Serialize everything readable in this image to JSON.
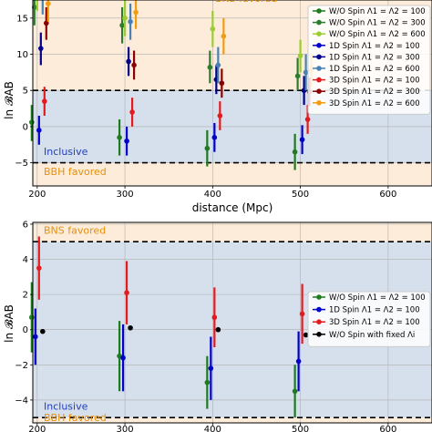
{
  "chart_data": [
    {
      "type": "scatter",
      "xlabel": "distance (Mpc)",
      "ylabel": "ln 𝓑AB",
      "xticks": [
        "200",
        "300",
        "400",
        "500",
        "600"
      ],
      "yticks": [
        "−5",
        "0",
        "5",
        "10",
        "15"
      ],
      "xlim": [
        195,
        650
      ],
      "ylim": [
        -8.2,
        17.5
      ],
      "grid": true,
      "thresholds": [
        5,
        -5
      ],
      "zones": {
        "top_label": "BNS favored",
        "inclusive_label": "Inclusive",
        "bottom_label": "BBH favored",
        "top_color": "#fcecd9",
        "mid_color": "#d6dfec"
      },
      "legend_position": "right, upper",
      "series": [
        {
          "name": "W/O Spin Λ1 = Λ2 = 100",
          "color": "#1e7b1e",
          "dx": -6,
          "points": [
            {
              "x": 200,
              "y": 0.6,
              "lo": -2,
              "hi": 3
            },
            {
              "x": 300,
              "y": -1.5,
              "lo": -4,
              "hi": 1
            },
            {
              "x": 400,
              "y": -3,
              "lo": -5.5,
              "hi": -0.5
            },
            {
              "x": 500,
              "y": -3.5,
              "lo": -6,
              "hi": -1
            }
          ]
        },
        {
          "name": "W/O Spin Λ1 = Λ2 = 300",
          "color": "#2e7d2e",
          "dx": -3,
          "points": [
            {
              "x": 200,
              "y": 16.5,
              "lo": 14,
              "hi": 19
            },
            {
              "x": 300,
              "y": 14,
              "lo": 11.5,
              "hi": 16.5
            },
            {
              "x": 400,
              "y": 8.2,
              "lo": 6,
              "hi": 10.5
            },
            {
              "x": 500,
              "y": 7,
              "lo": 5,
              "hi": 9.5
            }
          ]
        },
        {
          "name": "W/O Spin Λ1 = Λ2 = 600",
          "color": "#9acd32",
          "dx": 0,
          "points": [
            {
              "x": 200,
              "y": 19,
              "lo": 16,
              "hi": 22
            },
            {
              "x": 300,
              "y": 15,
              "lo": 12.5,
              "hi": 17.5
            },
            {
              "x": 400,
              "y": 13.5,
              "lo": 11,
              "hi": 16
            },
            {
              "x": 500,
              "y": 9.8,
              "lo": 7.5,
              "hi": 12
            }
          ]
        },
        {
          "name": "1D Spin Λ1 = Λ2 = 100",
          "color": "#0000cd",
          "dx": 2,
          "points": [
            {
              "x": 200,
              "y": -0.5,
              "lo": -2.5,
              "hi": 1.5
            },
            {
              "x": 300,
              "y": -2,
              "lo": -4,
              "hi": 0
            },
            {
              "x": 400,
              "y": -1.5,
              "lo": -3.5,
              "hi": 0.5
            },
            {
              "x": 500,
              "y": -1.8,
              "lo": -3.8,
              "hi": 0.2
            }
          ]
        },
        {
          "name": "1D Spin Λ1 = Λ2 = 300",
          "color": "#00008b",
          "dx": 4,
          "points": [
            {
              "x": 200,
              "y": 10.8,
              "lo": 8.5,
              "hi": 13
            },
            {
              "x": 300,
              "y": 9,
              "lo": 7,
              "hi": 11
            },
            {
              "x": 400,
              "y": 6.5,
              "lo": 4.5,
              "hi": 8.5
            },
            {
              "x": 500,
              "y": 5,
              "lo": 3,
              "hi": 7
            }
          ]
        },
        {
          "name": "1D Spin Λ1 = Λ2 = 600",
          "color": "#4682b4",
          "dx": 6,
          "points": [
            {
              "x": 200,
              "y": 18,
              "lo": 15.5,
              "hi": 20.5
            },
            {
              "x": 300,
              "y": 14.5,
              "lo": 12,
              "hi": 17
            },
            {
              "x": 400,
              "y": 8.5,
              "lo": 6,
              "hi": 11
            },
            {
              "x": 500,
              "y": 7.5,
              "lo": 5,
              "hi": 10
            }
          ]
        },
        {
          "name": "3D Spin Λ1 = Λ2 = 100",
          "color": "#e41a1c",
          "dx": 8,
          "points": [
            {
              "x": 200,
              "y": 3.5,
              "lo": 1.5,
              "hi": 5.5
            },
            {
              "x": 300,
              "y": 2,
              "lo": 0,
              "hi": 4
            },
            {
              "x": 400,
              "y": 1.5,
              "lo": -0.5,
              "hi": 3.5
            },
            {
              "x": 500,
              "y": 1,
              "lo": -1,
              "hi": 3
            }
          ]
        },
        {
          "name": "3D Spin Λ1 = Λ2 = 300",
          "color": "#8b0000",
          "dx": 10,
          "points": [
            {
              "x": 200,
              "y": 14.3,
              "lo": 12,
              "hi": 16.5
            },
            {
              "x": 300,
              "y": 8.5,
              "lo": 6.5,
              "hi": 10.5
            },
            {
              "x": 400,
              "y": 6,
              "lo": 4,
              "hi": 8
            },
            {
              "x": 500,
              "y": 4.8,
              "lo": 2.8,
              "hi": 6.8
            }
          ]
        },
        {
          "name": "3D Spin Λ1 = Λ2 = 600",
          "color": "#f39c12",
          "dx": 12,
          "points": [
            {
              "x": 200,
              "y": 17,
              "lo": 14.5,
              "hi": 19.5
            },
            {
              "x": 300,
              "y": 15.8,
              "lo": 13.5,
              "hi": 18
            },
            {
              "x": 400,
              "y": 12.5,
              "lo": 10,
              "hi": 15
            },
            {
              "x": 500,
              "y": 7.8,
              "lo": 5.5,
              "hi": 10
            }
          ]
        }
      ]
    },
    {
      "type": "scatter",
      "xlabel": "",
      "ylabel": "ln 𝓑AB",
      "xticks": [
        "200",
        "300",
        "400",
        "500",
        "600"
      ],
      "yticks": [
        "−4",
        "−2",
        "0",
        "2",
        "4",
        "6"
      ],
      "xlim": [
        195,
        650
      ],
      "ylim": [
        -5.3,
        6.1
      ],
      "grid": true,
      "thresholds": [
        5,
        -5
      ],
      "zones": {
        "top_label": "BNS favored",
        "inclusive_label": "Inclusive",
        "bottom_label": "BBH favored",
        "top_color": "#fcecd9",
        "mid_color": "#d6dfec"
      },
      "legend_position": "right, lower",
      "series": [
        {
          "name": "W/O Spin Λ1 = Λ2 = 100",
          "color": "#1e7b1e",
          "dx": -6,
          "points": [
            {
              "x": 200,
              "y": 0.7,
              "lo": -1.3,
              "hi": 2.7
            },
            {
              "x": 300,
              "y": -1.5,
              "lo": -3.5,
              "hi": 0.5
            },
            {
              "x": 400,
              "y": -3,
              "lo": -4.5,
              "hi": -1.5
            },
            {
              "x": 500,
              "y": -3.5,
              "lo": -5,
              "hi": -2
            }
          ]
        },
        {
          "name": "1D Spin Λ1 = Λ2 = 100",
          "color": "#0000cd",
          "dx": -2,
          "points": [
            {
              "x": 200,
              "y": -0.4,
              "lo": -2,
              "hi": 1.2
            },
            {
              "x": 300,
              "y": -1.6,
              "lo": -3.5,
              "hi": 0.3
            },
            {
              "x": 400,
              "y": -2.2,
              "lo": -4,
              "hi": -0.4
            },
            {
              "x": 500,
              "y": -1.8,
              "lo": -3.5,
              "hi": -0.1
            }
          ]
        },
        {
          "name": "3D Spin Λ1 = Λ2 = 100",
          "color": "#e41a1c",
          "dx": 2,
          "points": [
            {
              "x": 200,
              "y": 3.5,
              "lo": 1.7,
              "hi": 5.3
            },
            {
              "x": 300,
              "y": 2.1,
              "lo": 0.3,
              "hi": 3.9
            },
            {
              "x": 400,
              "y": 0.7,
              "lo": -1,
              "hi": 2.4
            },
            {
              "x": 500,
              "y": 0.9,
              "lo": -0.8,
              "hi": 2.6
            }
          ]
        },
        {
          "name": "W/O Spin with fixed Λi",
          "color": "#000000",
          "dx": 6,
          "points": [
            {
              "x": 200,
              "y": -0.1,
              "lo": -0.1,
              "hi": -0.1
            },
            {
              "x": 300,
              "y": 0.1,
              "lo": 0.1,
              "hi": 0.1
            },
            {
              "x": 400,
              "y": 0,
              "lo": 0,
              "hi": 0
            },
            {
              "x": 500,
              "y": -0.3,
              "lo": -0.3,
              "hi": -0.3
            }
          ]
        }
      ]
    }
  ]
}
